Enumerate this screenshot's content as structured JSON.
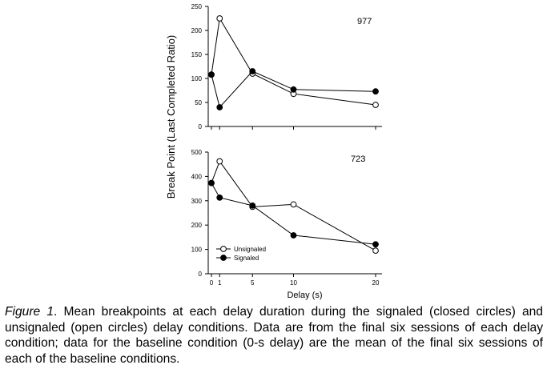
{
  "chart_data": [
    {
      "type": "line",
      "subject": "977",
      "x": [
        0,
        1,
        5,
        10,
        20
      ],
      "xlim": [
        0,
        20
      ],
      "ylim": [
        0,
        250
      ],
      "yticks": [
        0,
        50,
        100,
        150,
        200,
        250
      ],
      "series": [
        {
          "name": "Unsignaled",
          "marker": "open-circle",
          "values": [
            108,
            225,
            110,
            68,
            45
          ]
        },
        {
          "name": "Signaled",
          "marker": "closed-circle",
          "values": [
            108,
            40,
            115,
            77,
            73
          ]
        }
      ]
    },
    {
      "type": "line",
      "subject": "723",
      "x": [
        0,
        1,
        5,
        10,
        20
      ],
      "xlim": [
        0,
        20
      ],
      "ylim": [
        0,
        500
      ],
      "yticks": [
        0,
        100,
        200,
        300,
        400,
        500
      ],
      "xticks": [
        "0",
        "1",
        "5",
        "10",
        "20"
      ],
      "xlabel": "Delay (s)",
      "legend_position": "bottom-left",
      "series": [
        {
          "name": "Unsignaled",
          "marker": "open-circle",
          "values": [
            373,
            462,
            275,
            285,
            95
          ]
        },
        {
          "name": "Signaled",
          "marker": "closed-circle",
          "values": [
            373,
            313,
            280,
            158,
            121
          ]
        }
      ]
    }
  ],
  "ylabel": "Break Point (Last Completed Ratio)",
  "caption": {
    "label": "Figure 1",
    "text": ". Mean breakpoints at each delay duration during the signaled (closed circles) and unsignaled (open circles) delay conditions. Data are from the final six sessions of each delay condition; data for the baseline condition (0-s delay) are the mean of the final six sessions of each of the baseline conditions."
  }
}
